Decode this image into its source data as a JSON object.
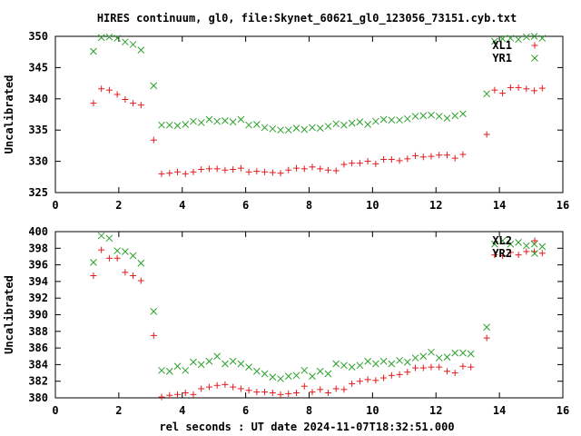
{
  "title": "HIRES continuum, gl0, file:Skynet_60621_gl0_123056_73151.cyb.txt",
  "xlabel": "rel seconds : UT date 2024-11-07T18:32:51.000",
  "colors": {
    "red": "#e41a1c",
    "green": "#2ca02c",
    "axis": "#000000"
  },
  "chart_data": [
    {
      "type": "scatter",
      "ylabel": "Uncalibrated",
      "xlim": [
        0,
        16
      ],
      "ylim": [
        325,
        350
      ],
      "xticks": [
        0,
        2,
        4,
        6,
        8,
        10,
        12,
        14,
        16
      ],
      "yticks": [
        325,
        330,
        335,
        340,
        345,
        350
      ],
      "legend_position": "top-right",
      "series": [
        {
          "name": "XL1",
          "marker": "plus",
          "color": "#e41a1c",
          "points": [
            [
              1.2,
              339.3
            ],
            [
              1.45,
              341.6
            ],
            [
              1.7,
              341.4
            ],
            [
              1.95,
              340.7
            ],
            [
              2.2,
              339.9
            ],
            [
              2.45,
              339.3
            ],
            [
              2.7,
              339.0
            ],
            [
              3.1,
              333.4
            ],
            [
              3.35,
              328.0
            ],
            [
              3.6,
              328.1
            ],
            [
              3.85,
              328.3
            ],
            [
              4.1,
              328.0
            ],
            [
              4.35,
              328.3
            ],
            [
              4.6,
              328.7
            ],
            [
              4.85,
              328.8
            ],
            [
              5.1,
              328.8
            ],
            [
              5.35,
              328.6
            ],
            [
              5.6,
              328.7
            ],
            [
              5.85,
              328.9
            ],
            [
              6.1,
              328.3
            ],
            [
              6.35,
              328.4
            ],
            [
              6.6,
              328.3
            ],
            [
              6.85,
              328.2
            ],
            [
              7.1,
              328.1
            ],
            [
              7.35,
              328.6
            ],
            [
              7.6,
              328.9
            ],
            [
              7.85,
              328.8
            ],
            [
              8.1,
              329.1
            ],
            [
              8.35,
              328.8
            ],
            [
              8.6,
              328.6
            ],
            [
              8.85,
              328.5
            ],
            [
              9.1,
              329.5
            ],
            [
              9.35,
              329.7
            ],
            [
              9.6,
              329.7
            ],
            [
              9.85,
              330.0
            ],
            [
              10.1,
              329.6
            ],
            [
              10.35,
              330.3
            ],
            [
              10.6,
              330.3
            ],
            [
              10.85,
              330.1
            ],
            [
              11.1,
              330.4
            ],
            [
              11.35,
              330.9
            ],
            [
              11.6,
              330.7
            ],
            [
              11.85,
              330.8
            ],
            [
              12.1,
              331.0
            ],
            [
              12.35,
              331.0
            ],
            [
              12.6,
              330.5
            ],
            [
              12.85,
              331.1
            ],
            [
              13.6,
              334.3
            ],
            [
              13.85,
              341.4
            ],
            [
              14.1,
              340.9
            ],
            [
              14.35,
              341.8
            ],
            [
              14.6,
              341.8
            ],
            [
              14.85,
              341.6
            ],
            [
              15.1,
              341.3
            ],
            [
              15.35,
              341.7
            ]
          ]
        },
        {
          "name": "YR1",
          "marker": "x",
          "color": "#2ca02c",
          "points": [
            [
              1.2,
              347.6
            ],
            [
              1.45,
              349.8
            ],
            [
              1.7,
              349.9
            ],
            [
              1.95,
              349.7
            ],
            [
              2.2,
              349.1
            ],
            [
              2.45,
              348.7
            ],
            [
              2.7,
              347.8
            ],
            [
              3.1,
              342.1
            ],
            [
              3.35,
              335.8
            ],
            [
              3.6,
              335.8
            ],
            [
              3.85,
              335.7
            ],
            [
              4.1,
              335.9
            ],
            [
              4.35,
              336.4
            ],
            [
              4.6,
              336.2
            ],
            [
              4.85,
              336.7
            ],
            [
              5.1,
              336.4
            ],
            [
              5.35,
              336.5
            ],
            [
              5.6,
              336.3
            ],
            [
              5.85,
              336.7
            ],
            [
              6.1,
              335.8
            ],
            [
              6.35,
              335.9
            ],
            [
              6.6,
              335.4
            ],
            [
              6.85,
              335.2
            ],
            [
              7.1,
              335.0
            ],
            [
              7.35,
              335.0
            ],
            [
              7.6,
              335.3
            ],
            [
              7.85,
              335.1
            ],
            [
              8.1,
              335.4
            ],
            [
              8.35,
              335.3
            ],
            [
              8.6,
              335.6
            ],
            [
              8.85,
              336.0
            ],
            [
              9.1,
              335.8
            ],
            [
              9.35,
              336.1
            ],
            [
              9.6,
              336.3
            ],
            [
              9.85,
              335.9
            ],
            [
              10.1,
              336.4
            ],
            [
              10.35,
              336.7
            ],
            [
              10.6,
              336.6
            ],
            [
              10.85,
              336.6
            ],
            [
              11.1,
              336.8
            ],
            [
              11.35,
              337.2
            ],
            [
              11.6,
              337.3
            ],
            [
              11.85,
              337.4
            ],
            [
              12.1,
              337.2
            ],
            [
              12.35,
              336.9
            ],
            [
              12.6,
              337.3
            ],
            [
              12.85,
              337.6
            ],
            [
              13.6,
              340.8
            ],
            [
              13.85,
              349.2
            ],
            [
              14.1,
              349.6
            ],
            [
              14.35,
              349.7
            ],
            [
              14.6,
              349.5
            ],
            [
              14.85,
              349.9
            ],
            [
              15.1,
              350.0
            ],
            [
              15.35,
              349.7
            ]
          ]
        }
      ]
    },
    {
      "type": "scatter",
      "ylabel": "Uncalibrated",
      "xlim": [
        0,
        16
      ],
      "ylim": [
        380,
        400
      ],
      "xticks": [
        0,
        2,
        4,
        6,
        8,
        10,
        12,
        14,
        16
      ],
      "yticks": [
        380,
        382,
        384,
        386,
        388,
        390,
        392,
        394,
        396,
        398,
        400
      ],
      "legend_position": "top-right",
      "series": [
        {
          "name": "XL2",
          "marker": "plus",
          "color": "#e41a1c",
          "points": [
            [
              1.2,
              394.7
            ],
            [
              1.45,
              397.8
            ],
            [
              1.7,
              396.8
            ],
            [
              1.95,
              396.8
            ],
            [
              2.2,
              395.1
            ],
            [
              2.45,
              394.7
            ],
            [
              2.7,
              394.1
            ],
            [
              3.1,
              387.5
            ],
            [
              3.35,
              380.1
            ],
            [
              3.6,
              380.3
            ],
            [
              3.85,
              380.4
            ],
            [
              4.1,
              380.6
            ],
            [
              4.35,
              380.4
            ],
            [
              4.6,
              381.1
            ],
            [
              4.85,
              381.3
            ],
            [
              5.1,
              381.5
            ],
            [
              5.35,
              381.6
            ],
            [
              5.6,
              381.3
            ],
            [
              5.85,
              381.1
            ],
            [
              6.1,
              380.9
            ],
            [
              6.35,
              380.7
            ],
            [
              6.6,
              380.7
            ],
            [
              6.85,
              380.6
            ],
            [
              7.1,
              380.4
            ],
            [
              7.35,
              380.5
            ],
            [
              7.6,
              380.6
            ],
            [
              7.85,
              381.4
            ],
            [
              8.1,
              380.7
            ],
            [
              8.35,
              381.0
            ],
            [
              8.6,
              380.6
            ],
            [
              8.85,
              381.1
            ],
            [
              9.1,
              381.0
            ],
            [
              9.35,
              381.7
            ],
            [
              9.6,
              382.0
            ],
            [
              9.85,
              382.2
            ],
            [
              10.1,
              382.1
            ],
            [
              10.35,
              382.4
            ],
            [
              10.6,
              382.7
            ],
            [
              10.85,
              382.8
            ],
            [
              11.1,
              383.1
            ],
            [
              11.35,
              383.6
            ],
            [
              11.6,
              383.6
            ],
            [
              11.85,
              383.7
            ],
            [
              12.1,
              383.7
            ],
            [
              12.35,
              383.2
            ],
            [
              12.6,
              383.0
            ],
            [
              12.85,
              383.8
            ],
            [
              13.1,
              383.7
            ],
            [
              13.6,
              387.2
            ],
            [
              13.85,
              397.2
            ],
            [
              14.1,
              397.1
            ],
            [
              14.35,
              397.5
            ],
            [
              14.6,
              397.2
            ],
            [
              14.85,
              397.6
            ],
            [
              15.1,
              397.6
            ],
            [
              15.35,
              397.4
            ]
          ]
        },
        {
          "name": "YR2",
          "marker": "x",
          "color": "#2ca02c",
          "points": [
            [
              1.2,
              396.3
            ],
            [
              1.45,
              399.5
            ],
            [
              1.7,
              399.2
            ],
            [
              1.95,
              397.7
            ],
            [
              2.2,
              397.6
            ],
            [
              2.45,
              397.1
            ],
            [
              2.7,
              396.2
            ],
            [
              3.1,
              390.4
            ],
            [
              3.35,
              383.3
            ],
            [
              3.6,
              383.2
            ],
            [
              3.85,
              383.8
            ],
            [
              4.1,
              383.3
            ],
            [
              4.35,
              384.3
            ],
            [
              4.6,
              384.0
            ],
            [
              4.85,
              384.4
            ],
            [
              5.1,
              385.0
            ],
            [
              5.35,
              384.1
            ],
            [
              5.6,
              384.4
            ],
            [
              5.85,
              384.1
            ],
            [
              6.1,
              383.7
            ],
            [
              6.35,
              383.2
            ],
            [
              6.6,
              382.9
            ],
            [
              6.85,
              382.5
            ],
            [
              7.1,
              382.3
            ],
            [
              7.35,
              382.6
            ],
            [
              7.6,
              382.7
            ],
            [
              7.85,
              383.3
            ],
            [
              8.1,
              382.6
            ],
            [
              8.35,
              383.2
            ],
            [
              8.6,
              382.9
            ],
            [
              8.85,
              384.1
            ],
            [
              9.1,
              383.9
            ],
            [
              9.35,
              383.7
            ],
            [
              9.6,
              383.9
            ],
            [
              9.85,
              384.4
            ],
            [
              10.1,
              384.1
            ],
            [
              10.35,
              384.4
            ],
            [
              10.6,
              384.1
            ],
            [
              10.85,
              384.5
            ],
            [
              11.1,
              384.3
            ],
            [
              11.35,
              384.8
            ],
            [
              11.6,
              385.0
            ],
            [
              11.85,
              385.5
            ],
            [
              12.1,
              384.8
            ],
            [
              12.35,
              384.9
            ],
            [
              12.6,
              385.4
            ],
            [
              12.85,
              385.4
            ],
            [
              13.1,
              385.3
            ],
            [
              13.6,
              388.5
            ],
            [
              13.85,
              398.5
            ],
            [
              14.1,
              398.9
            ],
            [
              14.35,
              398.5
            ],
            [
              14.6,
              398.7
            ],
            [
              14.85,
              398.3
            ],
            [
              15.1,
              398.5
            ],
            [
              15.35,
              398.2
            ]
          ]
        }
      ]
    }
  ]
}
